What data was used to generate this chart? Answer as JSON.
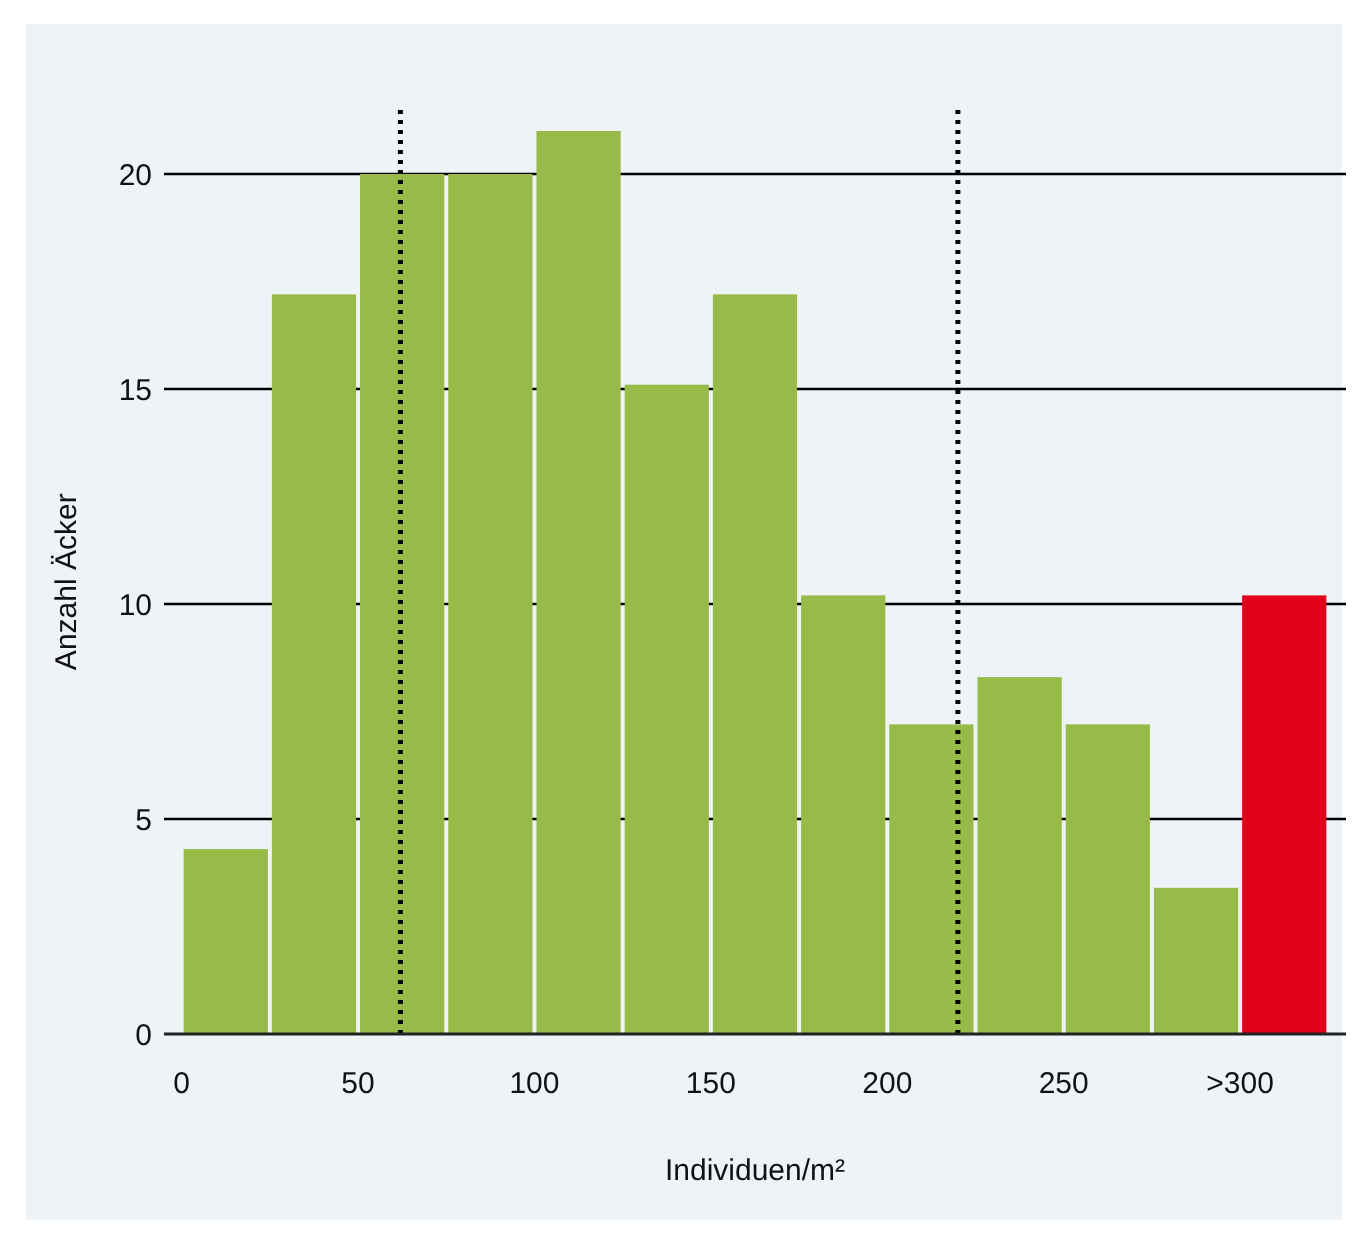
{
  "chart_data": {
    "type": "histogram",
    "xlabel": "Individuen/m²",
    "ylabel": "Anzahl Äcker",
    "bins": [
      0,
      25,
      50,
      75,
      100,
      125,
      150,
      175,
      200,
      225,
      250,
      275,
      300,
      325
    ],
    "values": [
      4.3,
      17.2,
      20,
      20,
      21,
      15.1,
      17.2,
      10.2,
      7.2,
      8.3,
      7.2,
      3.4,
      10.2
    ],
    "colors": [
      "#97ba48",
      "#97ba48",
      "#97ba48",
      "#97ba48",
      "#97ba48",
      "#97ba48",
      "#97ba48",
      "#97ba48",
      "#97ba48",
      "#97ba48",
      "#97ba48",
      "#97ba48",
      "#e2001a"
    ],
    "xlim": [
      -5,
      330
    ],
    "xticks": [
      0,
      50,
      100,
      150,
      200,
      250,
      {
        "value": 300,
        "label": ">300"
      }
    ],
    "ylim": [
      0,
      21.5
    ],
    "yticks": [
      0,
      5,
      10,
      15,
      20
    ],
    "grid": "y",
    "ref_lines": [
      {
        "axis": "x",
        "value": 62,
        "line_style": "dotted",
        "color": "#000000"
      },
      {
        "axis": "x",
        "value": 220,
        "line_style": "dotted",
        "color": "#000000"
      }
    ]
  }
}
